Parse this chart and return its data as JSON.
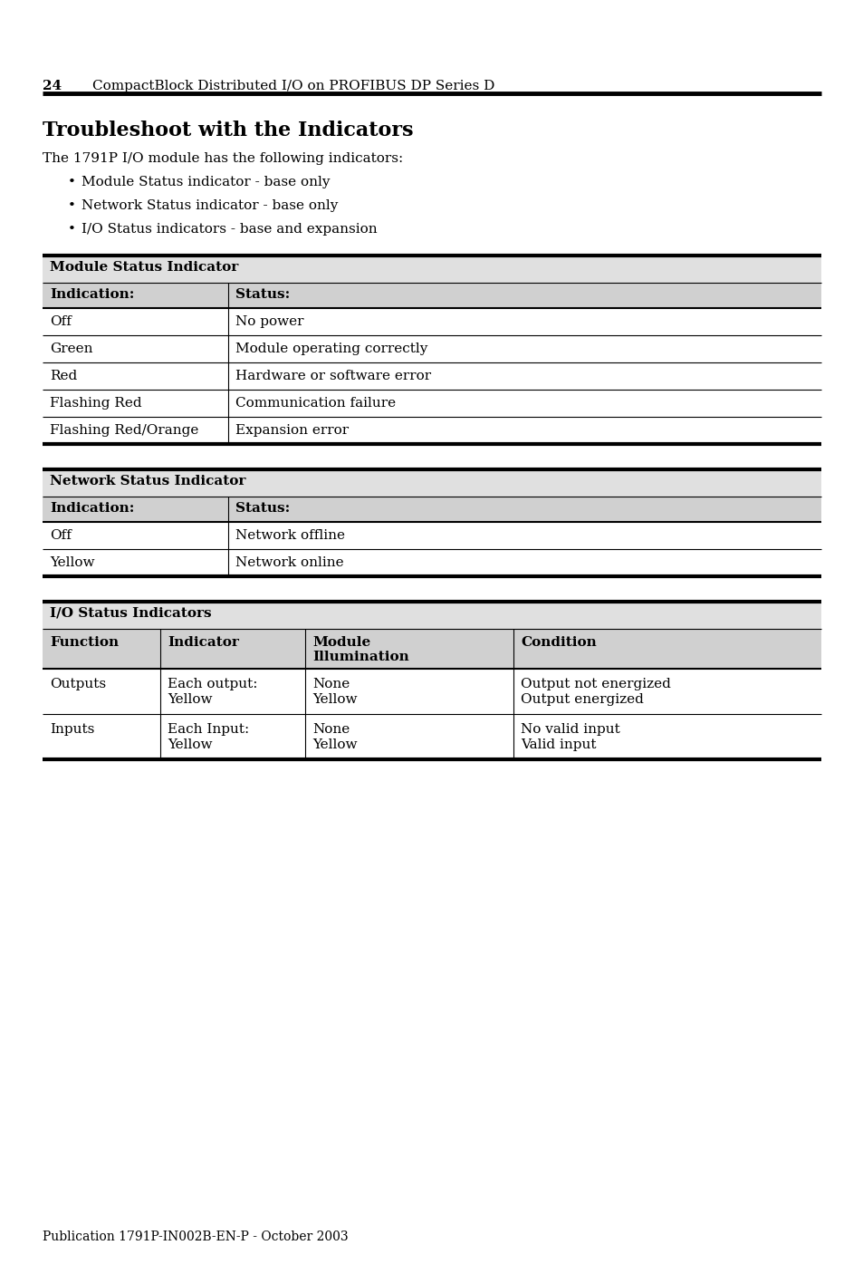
{
  "page_number": "24",
  "header_title": "CompactBlock Distributed I/O on PROFIBUS DP Series D",
  "section_title": "Troubleshoot with the Indicators",
  "intro_text": "The 1791P I/O module has the following indicators:",
  "bullet_points": [
    "Module Status indicator - base only",
    "Network Status indicator - base only",
    "I/O Status indicators - base and expansion"
  ],
  "table1_header": "Module Status Indicator",
  "table1_col_headers": [
    "Indication:",
    "Status:"
  ],
  "table1_rows": [
    [
      "Off",
      "No power"
    ],
    [
      "Green",
      "Module operating correctly"
    ],
    [
      "Red",
      "Hardware or software error"
    ],
    [
      "Flashing Red",
      "Communication failure"
    ],
    [
      "Flashing Red/Orange",
      "Expansion error"
    ]
  ],
  "table2_header": "Network Status Indicator",
  "table2_col_headers": [
    "Indication:",
    "Status:"
  ],
  "table2_rows": [
    [
      "Off",
      "Network offline"
    ],
    [
      "Yellow",
      "Network online"
    ]
  ],
  "table3_header": "I/O Status Indicators",
  "table3_col_headers": [
    "Function",
    "Indicator",
    "Module\nIllumination",
    "Condition"
  ],
  "table3_rows": [
    [
      "Outputs",
      "Each output:\nYellow",
      "None\nYellow",
      "Output not energized\nOutput energized"
    ],
    [
      "Inputs",
      "Each Input:\nYellow",
      "None\nYellow",
      "No valid input\nValid input"
    ]
  ],
  "footer_text": "Publication 1791P-IN002B-EN-P - October 2003",
  "bg_color": "#ffffff",
  "table_header_bg": "#e0e0e0",
  "table_subheader_bg": "#d0d0d0",
  "line_color": "#000000",
  "text_color": "#000000"
}
